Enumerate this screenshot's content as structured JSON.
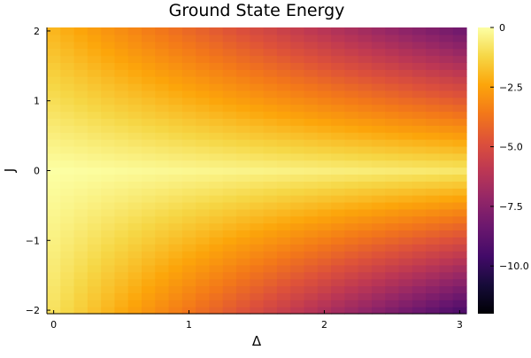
{
  "chart_data": {
    "type": "heatmap",
    "title": "Ground State Energy",
    "xlabel": "Δ",
    "ylabel": "J",
    "x_range": [
      -0.05,
      3.05
    ],
    "y_range": [
      -2.05,
      2.05
    ],
    "x_ticks": [
      0,
      1,
      2,
      3
    ],
    "x_tick_labels": [
      "0",
      "1",
      "2",
      "3"
    ],
    "y_ticks": [
      -2,
      -1,
      0,
      1,
      2
    ],
    "y_tick_labels": [
      "−2",
      "−1",
      "0",
      "1",
      "2"
    ],
    "grid_size": {
      "nx": 31,
      "ny": 41
    },
    "x_step": 0.1,
    "y_step": 0.1,
    "value_formula": "E(Δ, J) = -|J| · (1 + 0.9·Δ) - 0.25·Δ for J ≥ 0; E = -|J|·(0.45 + 1.25·Δ) - 0.25·Δ for J < 0 (approximate, estimated from colors)",
    "colorbar": {
      "colormap": "inferno",
      "range": [
        -12,
        0
      ],
      "ticks": [
        0,
        -2.5,
        -5.0,
        -7.5,
        -10.0
      ],
      "tick_labels": [
        "0",
        "−2.5",
        "−5.0",
        "−7.5",
        "−10.0"
      ]
    },
    "legend_position": "right",
    "grid": false
  }
}
